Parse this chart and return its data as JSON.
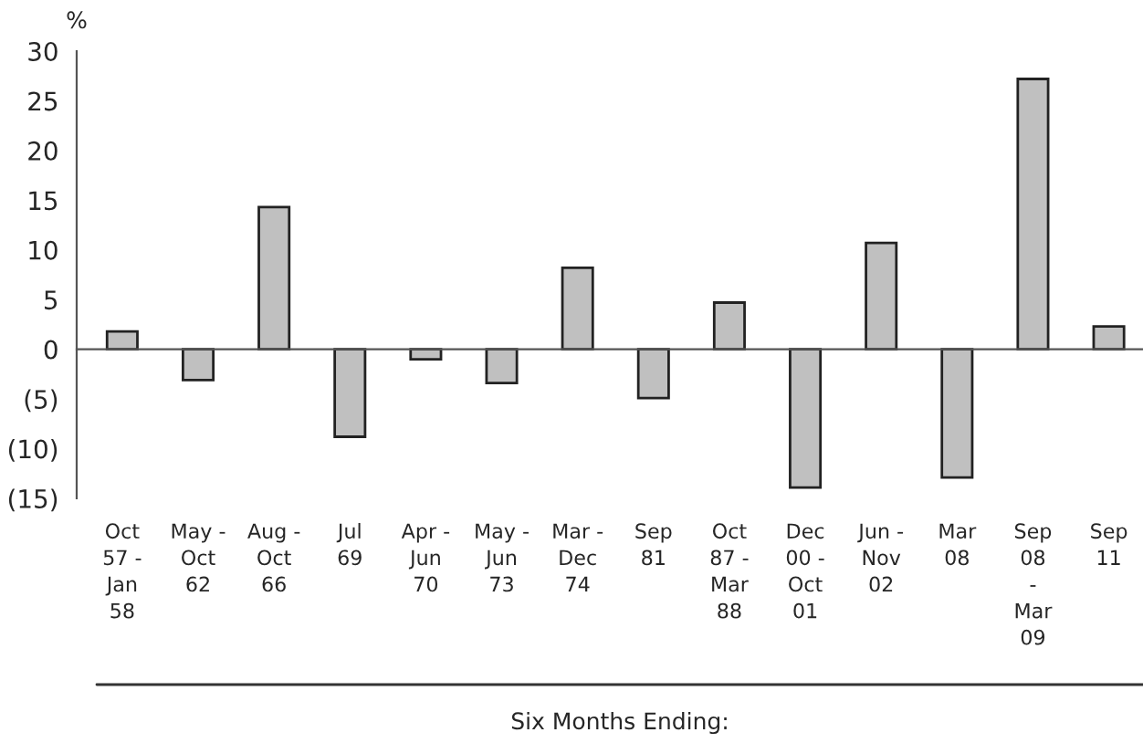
{
  "chart_data": {
    "type": "bar",
    "categories": [
      "Oct\n57 -\nJan\n58",
      "May -\nOct\n62",
      "Aug -\nOct\n66",
      "Jul\n69",
      "Apr -\nJun\n70",
      "May -\nJun\n73",
      "Mar -\nDec\n74",
      "Sep\n81",
      "Oct\n87 -\nMar\n88",
      "Dec\n00 -\nOct\n01",
      "Jun -\nNov\n02",
      "Mar\n08",
      "Sep\n08\n-\nMar\n09",
      "Sep\n11"
    ],
    "values": [
      1.8,
      -3.1,
      14.3,
      -8.8,
      -1.0,
      -3.4,
      8.2,
      -4.9,
      4.7,
      -13.9,
      10.7,
      -12.9,
      27.2,
      2.3
    ],
    "color": "#c0c0c0",
    "ylabel": "%",
    "xlabel": "Six Months Ending:",
    "ylim": [
      -15,
      30
    ],
    "yticks": [
      {
        "value": -15,
        "label": "(15)"
      },
      {
        "value": -10,
        "label": "(10)"
      },
      {
        "value": -5,
        "label": "(5)"
      },
      0,
      5,
      10,
      15,
      20,
      25,
      30
    ],
    "legend": false
  }
}
